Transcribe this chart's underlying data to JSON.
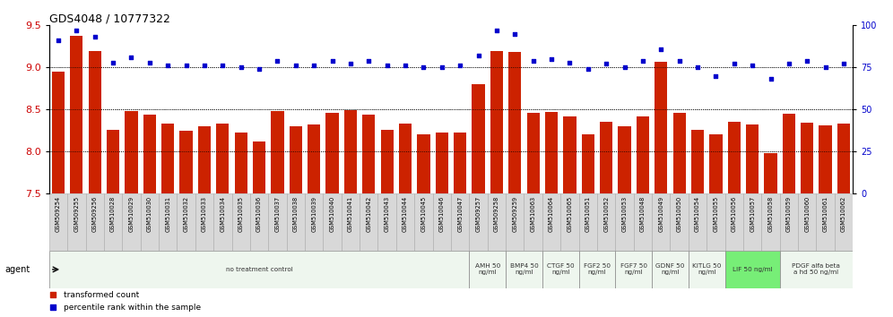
{
  "title": "GDS4048 / 10777322",
  "samples": [
    "GSM509254",
    "GSM509255",
    "GSM509256",
    "GSM510028",
    "GSM510029",
    "GSM510030",
    "GSM510031",
    "GSM510032",
    "GSM510033",
    "GSM510034",
    "GSM510035",
    "GSM510036",
    "GSM510037",
    "GSM510038",
    "GSM510039",
    "GSM510040",
    "GSM510041",
    "GSM510042",
    "GSM510043",
    "GSM510044",
    "GSM510045",
    "GSM510046",
    "GSM510047",
    "GSM509257",
    "GSM509258",
    "GSM509259",
    "GSM510063",
    "GSM510064",
    "GSM510065",
    "GSM510051",
    "GSM510052",
    "GSM510053",
    "GSM510048",
    "GSM510049",
    "GSM510050",
    "GSM510054",
    "GSM510055",
    "GSM510056",
    "GSM510057",
    "GSM510058",
    "GSM510059",
    "GSM510060",
    "GSM510061",
    "GSM510062"
  ],
  "bar_values": [
    8.95,
    9.38,
    9.19,
    8.26,
    8.48,
    8.44,
    8.33,
    8.25,
    8.3,
    8.33,
    8.22,
    8.12,
    8.48,
    8.3,
    8.32,
    8.46,
    8.49,
    8.44,
    8.26,
    8.33,
    8.2,
    8.22,
    8.22,
    8.8,
    9.19,
    9.18,
    8.46,
    8.47,
    8.42,
    8.2,
    8.35,
    8.3,
    8.42,
    9.07,
    8.46,
    8.26,
    8.2,
    8.35,
    8.32,
    7.98,
    8.45,
    8.34,
    8.31,
    8.33
  ],
  "percentile_values": [
    91,
    97,
    93,
    78,
    81,
    78,
    76,
    76,
    76,
    76,
    75,
    74,
    79,
    76,
    76,
    79,
    77,
    79,
    76,
    76,
    75,
    75,
    76,
    82,
    97,
    95,
    79,
    80,
    78,
    74,
    77,
    75,
    79,
    86,
    79,
    75,
    70,
    77,
    76,
    68,
    77,
    79,
    75,
    77
  ],
  "ylim_left": [
    7.5,
    9.5
  ],
  "ylim_right": [
    0,
    100
  ],
  "yticks_left": [
    7.5,
    8.0,
    8.5,
    9.0,
    9.5
  ],
  "yticks_right": [
    0,
    25,
    50,
    75,
    100
  ],
  "bar_color": "#cc2200",
  "dot_color": "#0000cc",
  "agent_groups": [
    {
      "label": "no treatment control",
      "start": 0,
      "end": 22,
      "color": "#eef6ee"
    },
    {
      "label": "AMH 50\nng/ml",
      "start": 23,
      "end": 24,
      "color": "#eef6ee"
    },
    {
      "label": "BMP4 50\nng/ml",
      "start": 25,
      "end": 26,
      "color": "#eef6ee"
    },
    {
      "label": "CTGF 50\nng/ml",
      "start": 27,
      "end": 28,
      "color": "#eef6ee"
    },
    {
      "label": "FGF2 50\nng/ml",
      "start": 29,
      "end": 30,
      "color": "#eef6ee"
    },
    {
      "label": "FGF7 50\nng/ml",
      "start": 31,
      "end": 32,
      "color": "#eef6ee"
    },
    {
      "label": "GDNF 50\nng/ml",
      "start": 33,
      "end": 34,
      "color": "#eef6ee"
    },
    {
      "label": "KITLG 50\nng/ml",
      "start": 35,
      "end": 36,
      "color": "#eef6ee"
    },
    {
      "label": "LIF 50 ng/ml",
      "start": 37,
      "end": 39,
      "color": "#77ee77"
    },
    {
      "label": "PDGF alfa beta\na hd 50 ng/ml",
      "start": 40,
      "end": 43,
      "color": "#eef6ee"
    }
  ],
  "agent_label_color": "#333333",
  "tick_label_color": "#cc0000",
  "right_tick_label_color": "#0000cc",
  "bar_baseline": 7.5
}
